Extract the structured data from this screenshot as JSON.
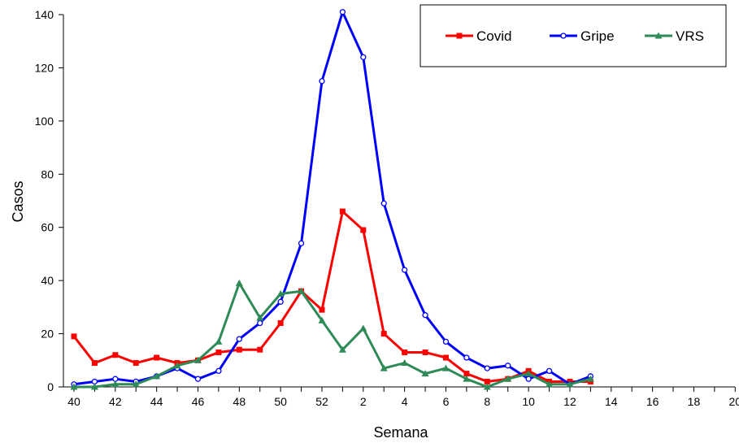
{
  "chart_data": {
    "type": "line",
    "xlabel": "Semana",
    "ylabel": "Casos",
    "ylim": [
      0,
      140
    ],
    "yticks": [
      0,
      20,
      40,
      60,
      80,
      100,
      120,
      140
    ],
    "x_weeks": [
      40,
      41,
      42,
      43,
      44,
      45,
      46,
      47,
      48,
      49,
      50,
      51,
      52,
      1,
      2,
      3,
      4,
      5,
      6,
      7,
      8,
      9,
      10,
      11,
      12,
      13,
      14,
      15,
      16,
      17,
      18,
      19,
      20
    ],
    "x_tick_labels": [
      "40",
      "42",
      "44",
      "46",
      "48",
      "50",
      "52",
      "2",
      "4",
      "6",
      "8",
      "10",
      "12",
      "14",
      "16",
      "18",
      "20"
    ],
    "legend_position": "top-right",
    "grid": false,
    "series": [
      {
        "name": "Covid",
        "color": "#ff0000",
        "marker": "square",
        "values": [
          19,
          9,
          12,
          9,
          11,
          9,
          10,
          13,
          14,
          14,
          24,
          36,
          29,
          66,
          59,
          20,
          13,
          13,
          11,
          5,
          2,
          3,
          6,
          2,
          2,
          2
        ]
      },
      {
        "name": "Gripe",
        "color": "#0000ff",
        "marker": "circle",
        "values": [
          1,
          2,
          3,
          2,
          4,
          7,
          3,
          6,
          18,
          24,
          32,
          54,
          115,
          141,
          124,
          69,
          44,
          27,
          17,
          11,
          7,
          8,
          3,
          6,
          1,
          4
        ]
      },
      {
        "name": "VRS",
        "color": "#2e8b57",
        "marker": "triangle",
        "values": [
          0,
          0,
          1,
          1,
          4,
          8,
          10,
          17,
          39,
          26,
          35,
          36,
          25,
          14,
          22,
          7,
          9,
          5,
          7,
          3,
          0,
          3,
          5,
          1,
          1,
          3
        ]
      }
    ]
  }
}
